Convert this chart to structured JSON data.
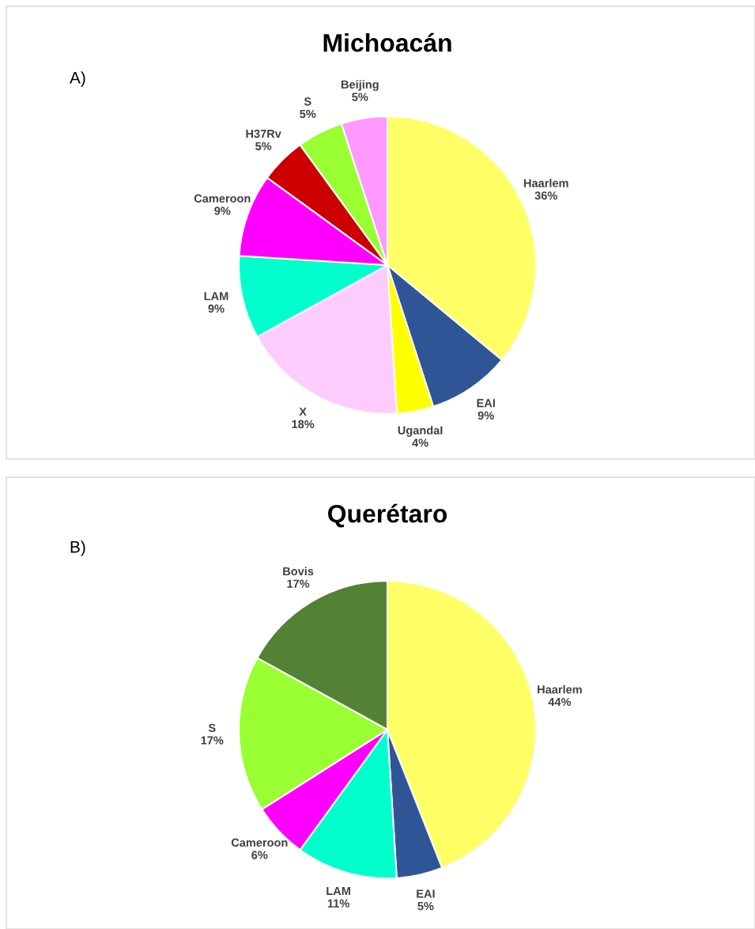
{
  "chart_data": [
    {
      "type": "pie",
      "title": "Michoacán",
      "annotations": [
        "A)"
      ],
      "categories": [
        "Haarlem",
        "EAI",
        "UgandaI",
        "X",
        "LAM",
        "Cameroon",
        "H37Rv",
        "S",
        "Beijing"
      ],
      "values": [
        36,
        9,
        4,
        18,
        9,
        9,
        5,
        5,
        5
      ],
      "value_labels": [
        "36%",
        "9%",
        "4%",
        "18%",
        "9%",
        "9%",
        "5%",
        "5%",
        "5%"
      ],
      "colors": [
        "#ffff66",
        "#2f5597",
        "#ffff00",
        "#ffccff",
        "#00ffcc",
        "#ff00ff",
        "#cc0000",
        "#99ff33",
        "#ff99ff"
      ]
    },
    {
      "type": "pie",
      "title": "Querétaro",
      "annotations": [
        "B)"
      ],
      "categories": [
        "Haarlem",
        "EAI",
        "LAM",
        "Cameroon",
        "S",
        "Bovis"
      ],
      "values": [
        44,
        5,
        11,
        6,
        17,
        17
      ],
      "value_labels": [
        "44%",
        "5%",
        "11%",
        "6%",
        "17%",
        "17%"
      ],
      "colors": [
        "#ffff66",
        "#2f5597",
        "#00ffcc",
        "#ff00ff",
        "#99ff33",
        "#548235"
      ]
    }
  ]
}
